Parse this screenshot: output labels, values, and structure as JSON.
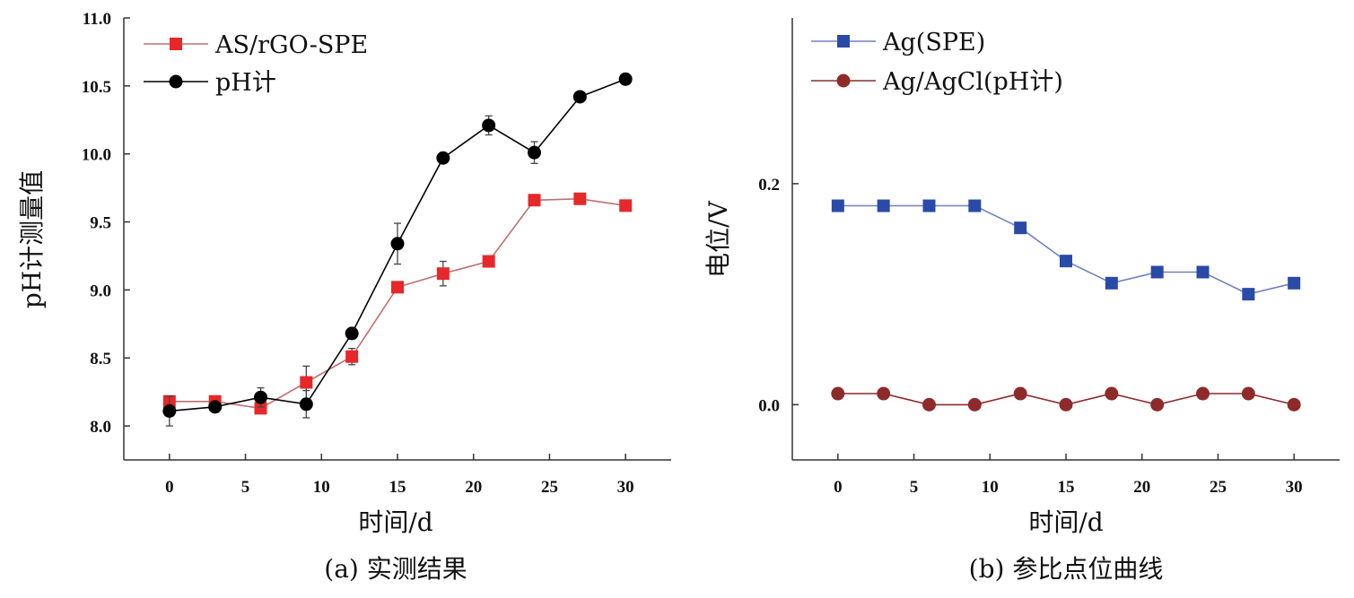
{
  "chart_data": [
    {
      "type": "line",
      "caption": "(a) 实测结果",
      "xlabel": "时间/d",
      "ylabel": "pH计测量值",
      "xlim": [
        -3,
        33
      ],
      "ylim": [
        7.75,
        11.0
      ],
      "xticks": [
        "0",
        "5",
        "10",
        "15",
        "20",
        "25",
        "30"
      ],
      "yticks": [
        "8.0",
        "8.5",
        "9.0",
        "9.5",
        "10.0",
        "10.5",
        "11.0"
      ],
      "legend_position": "top-left",
      "x": [
        0,
        3,
        6,
        9,
        12,
        15,
        18,
        21,
        24,
        27,
        30
      ],
      "series": [
        {
          "name": "AS/rGO-SPE",
          "color": "#e8272a",
          "line_color": "#c07070",
          "marker": "square",
          "values": [
            8.18,
            8.18,
            8.13,
            8.32,
            8.51,
            9.02,
            9.12,
            9.21,
            9.66,
            9.67,
            9.62
          ],
          "errors": [
            0.03,
            0.02,
            0.02,
            0.12,
            0.06,
            0.03,
            0.09,
            0.03,
            0.02,
            0.02,
            0.02
          ]
        },
        {
          "name": "pH计",
          "color": "#000000",
          "line_color": "#000000",
          "marker": "circle",
          "values": [
            8.11,
            8.14,
            8.21,
            8.16,
            8.68,
            9.34,
            9.97,
            10.21,
            10.01,
            10.42,
            10.55
          ],
          "errors": [
            0.11,
            0.03,
            0.07,
            0.1,
            0.02,
            0.15,
            0.02,
            0.07,
            0.08,
            0.02,
            0.02
          ]
        }
      ]
    },
    {
      "type": "line",
      "caption": "(b) 参比点位曲线",
      "xlabel": "时间/d",
      "ylabel": "电位/V",
      "xlim": [
        -3,
        33
      ],
      "ylim": [
        -0.05,
        0.35
      ],
      "xticks": [
        "0",
        "5",
        "10",
        "15",
        "20",
        "25",
        "30"
      ],
      "yticks": [
        "0.0",
        "0.2"
      ],
      "legend_position": "top-left",
      "x": [
        0,
        3,
        6,
        9,
        12,
        15,
        18,
        21,
        24,
        27,
        30
      ],
      "series": [
        {
          "name": "Ag(SPE)",
          "color": "#2a4aa8",
          "line_color": "#7080c0",
          "marker": "square",
          "values": [
            0.18,
            0.18,
            0.18,
            0.18,
            0.16,
            0.13,
            0.11,
            0.12,
            0.12,
            0.1,
            0.11
          ]
        },
        {
          "name": "Ag/AgCl(pH计)",
          "color": "#8e2a2a",
          "line_color": "#8e2a2a",
          "marker": "circle",
          "values": [
            0.01,
            0.01,
            0.0,
            0.0,
            0.01,
            0.0,
            0.01,
            0.0,
            0.01,
            0.01,
            0.0
          ]
        }
      ]
    }
  ]
}
